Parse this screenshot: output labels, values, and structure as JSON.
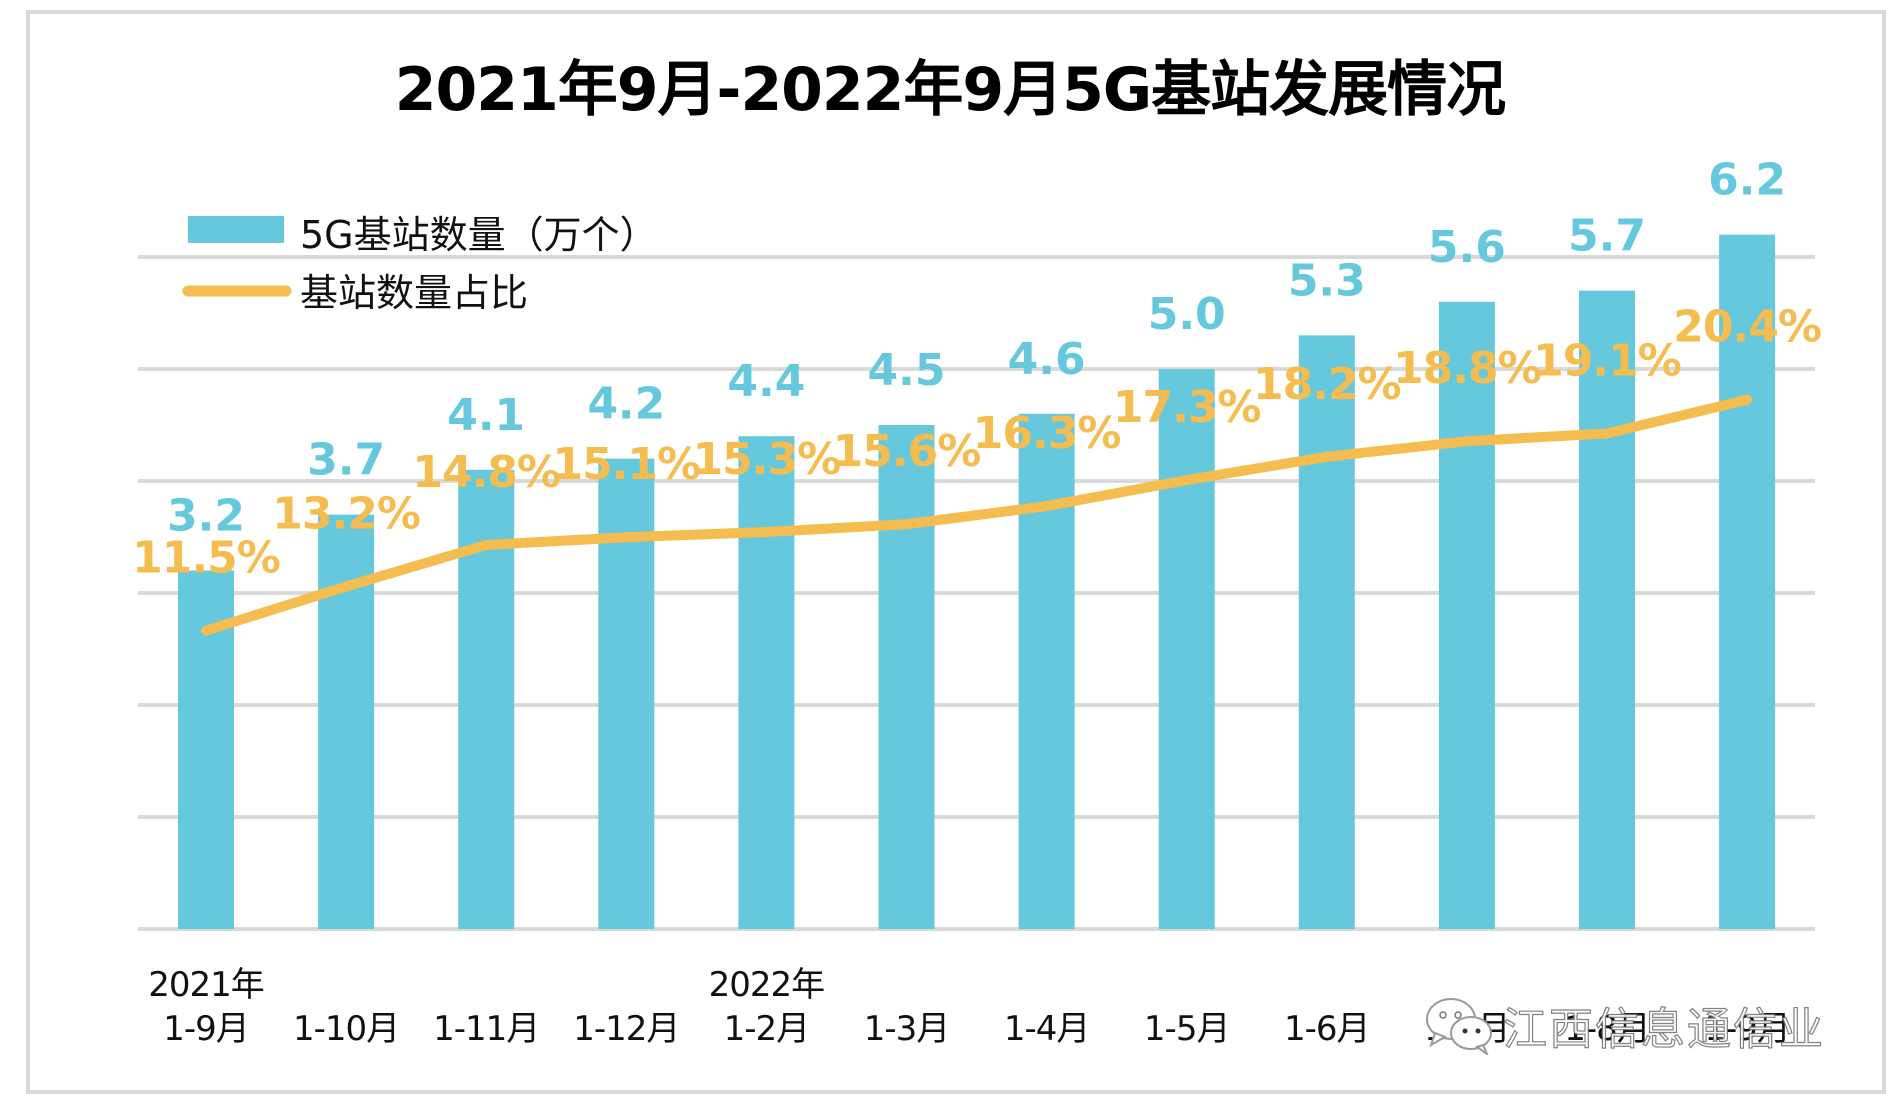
{
  "chart_data": {
    "type": "bar",
    "title": "2021年9月-2022年9月5G基站发展情况",
    "categories": [
      "1-9月",
      "1-10月",
      "1-11月",
      "1-12月",
      "1-2月",
      "1-3月",
      "1-4月",
      "1-5月",
      "1-6月",
      "1-7月",
      "1-8月",
      "1-9月"
    ],
    "year_labels": [
      {
        "index": 0,
        "text": "2021年"
      },
      {
        "index": 4,
        "text": "2022年"
      }
    ],
    "series": [
      {
        "name": "5G基站数量（万个）",
        "type": "bar",
        "color": "#66c8dc",
        "values": [
          3.2,
          3.7,
          4.1,
          4.2,
          4.4,
          4.5,
          4.6,
          5.0,
          5.3,
          5.6,
          5.7,
          6.2
        ],
        "labels": [
          "3.2",
          "3.7",
          "4.1",
          "4.2",
          "4.4",
          "4.5",
          "4.6",
          "5.0",
          "5.3",
          "5.6",
          "5.7",
          "6.2"
        ]
      },
      {
        "name": "基站数量占比",
        "type": "line",
        "color": "#f5bd4f",
        "values": [
          11.5,
          13.2,
          14.8,
          15.1,
          15.3,
          15.6,
          16.3,
          17.3,
          18.2,
          18.8,
          19.1,
          20.4
        ],
        "labels": [
          "11.5%",
          "13.2%",
          "14.8%",
          "15.1%",
          "15.3%",
          "15.6%",
          "16.3%",
          "17.3%",
          "18.2%",
          "18.8%",
          "19.1%",
          "20.4%"
        ]
      }
    ],
    "ylim": [
      0,
      6
    ],
    "ylim_secondary": [
      0,
      25.9
    ],
    "gridlines": [
      0,
      1,
      2,
      3,
      4,
      5,
      6
    ],
    "grid": true,
    "xlabel": "",
    "ylabel": "",
    "legend": {
      "position": "top-left",
      "items": [
        {
          "label": "5G基站数量（万个）",
          "kind": "bar-swatch",
          "color": "#66c8dc"
        },
        {
          "label": "基站数量占比",
          "kind": "line-swatch",
          "color": "#f5bd4f"
        }
      ]
    },
    "grid_color": "#d9d9d9"
  },
  "watermark": {
    "icon": "wechat-icon",
    "text": "江西信息通信业"
  }
}
